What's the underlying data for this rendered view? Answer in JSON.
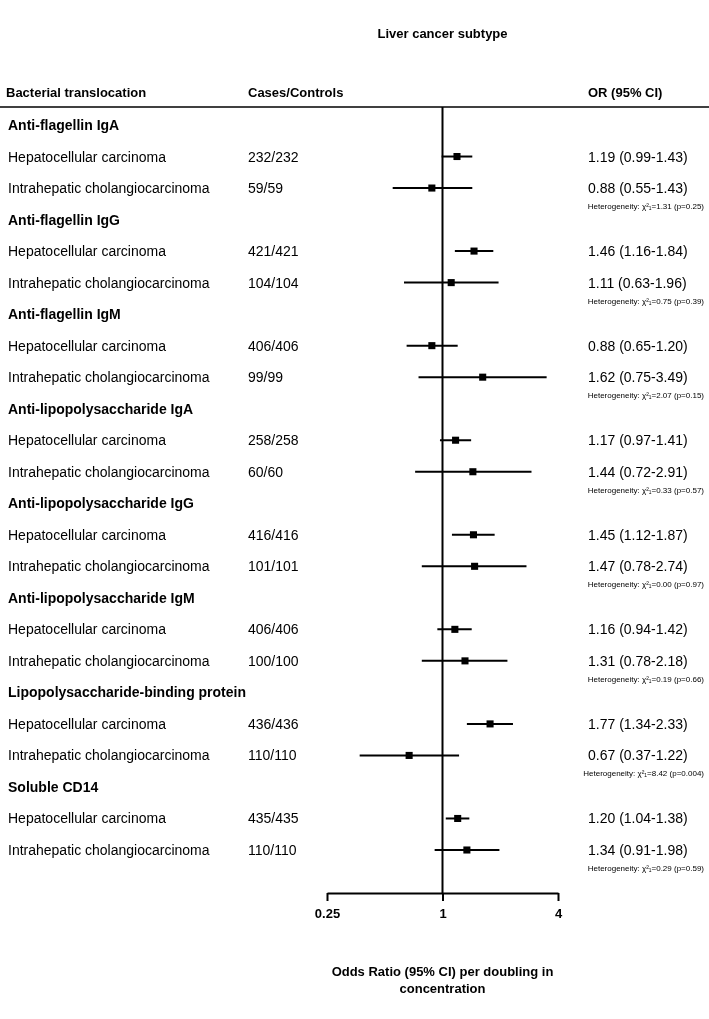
{
  "chart_data": {
    "type": "scatter",
    "orientation": "horizontal",
    "title": "Liver cancer subtype",
    "ylabel": "Bacterial translocation",
    "xlabel": "Odds Ratio (95% CI) per doubling in concentration",
    "log": "x",
    "marker": "square",
    "xlim": [
      0.25,
      4
    ],
    "xticks": [
      0.25,
      1,
      4
    ],
    "categories": [
      "Anti-flagellin IgA",
      "Hepatocellular carcinoma",
      "Intrahepatic cholangiocarcinoma",
      "Anti-flagellin IgG",
      "Hepatocellular carcinoma",
      "Intrahepatic cholangiocarcinoma",
      "Anti-flagellin IgM",
      "Hepatocellular carcinoma",
      "Intrahepatic cholangiocarcinoma",
      "Anti-lipopolysaccharide IgA",
      "Hepatocellular carcinoma",
      "Intrahepatic cholangiocarcinoma",
      "Anti-lipopolysaccharide IgG",
      "Hepatocellular carcinoma",
      "Intrahepatic cholangiocarcinoma",
      "Anti-lipopolysaccharide IgM",
      "Hepatocellular carcinoma",
      "Intrahepatic cholangiocarcinoma",
      "Lipopolysaccharide-binding protein",
      "Hepatocellular carcinoma",
      "Intrahepatic cholangiocarcinoma",
      "Soluble CD14",
      "Hepatocellular carcinoma",
      "Intrahepatic cholangiocarcinoma"
    ],
    "values": [
      null,
      1.19,
      0.88,
      null,
      1.46,
      1.11,
      null,
      0.88,
      1.62,
      null,
      1.17,
      1.44,
      null,
      1.45,
      1.47,
      null,
      1.16,
      1.31,
      null,
      1.77,
      0.67,
      null,
      1.2,
      1.34
    ],
    "errors": [
      null,
      [
        0.99,
        1.43
      ],
      [
        0.55,
        1.43
      ],
      null,
      [
        1.16,
        1.84
      ],
      [
        0.63,
        1.96
      ],
      null,
      [
        0.65,
        1.2
      ],
      [
        0.75,
        3.49
      ],
      null,
      [
        0.97,
        1.41
      ],
      [
        0.72,
        2.91
      ],
      null,
      [
        1.12,
        1.87
      ],
      [
        0.78,
        2.74
      ],
      null,
      [
        0.94,
        1.42
      ],
      [
        0.78,
        2.18
      ],
      null,
      [
        1.34,
        2.33
      ],
      [
        0.37,
        1.22
      ],
      null,
      [
        1.04,
        1.38
      ],
      [
        0.91,
        1.98
      ]
    ],
    "value_labels": [
      null,
      "1.19 (0.99-1.43)",
      "0.88 (0.55-1.43)",
      null,
      "1.46 (1.16-1.84)",
      "1.11 (0.63-1.96)",
      null,
      "0.88 (0.65-1.20)",
      "1.62 (0.75-3.49)",
      null,
      "1.17 (0.97-1.41)",
      "1.44 (0.72-2.91)",
      null,
      "1.45 (1.12-1.87)",
      "1.47 (0.78-2.74)",
      null,
      "1.16 (0.94-1.42)",
      "1.31 (0.78-2.18)",
      null,
      "1.77 (1.34-2.33)",
      "0.67 (0.37-1.22)",
      null,
      "1.20 (1.04-1.38)",
      "1.34 (0.91-1.98)"
    ],
    "ref_lines": [
      {
        "axis": "x",
        "value": 1,
        "color": "#000000"
      }
    ],
    "annotations": [
      "Cases/Controls",
      "OR (95% CI)",
      "232/232",
      "59/59",
      "421/421",
      "104/104",
      "406/406",
      "99/99",
      "258/258",
      "60/60",
      "416/416",
      "101/101",
      "406/406",
      "100/100",
      "436/436",
      "110/110",
      "435/435",
      "110/110",
      "Heterogeneity: χ²₁=1.31 (p=0.25)",
      "Heterogeneity: χ²₁=0.75 (p=0.39)",
      "Heterogeneity: χ²₁=2.07 (p=0.15)",
      "Heterogeneity: χ²₁=0.33 (p=0.57)",
      "Heterogeneity: χ²₁=0.00 (p=0.97)",
      "Heterogeneity: χ²₁=0.19 (p=0.66)",
      "Heterogeneity: χ²₁=8.42 (p=0.004)",
      "Heterogeneity: χ²₁=0.29 (p=0.59)"
    ]
  }
}
